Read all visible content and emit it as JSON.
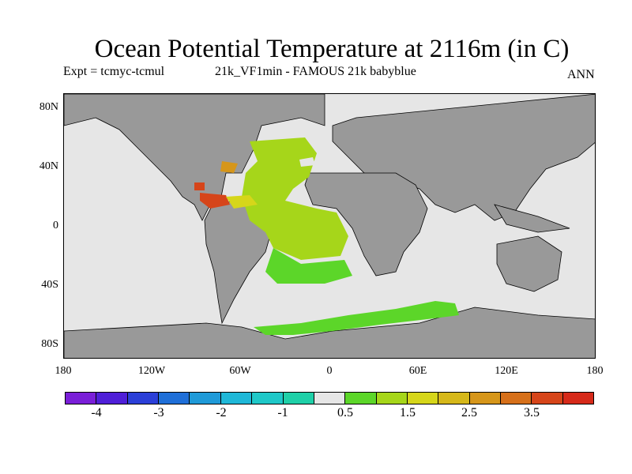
{
  "title": "Ocean Potential Temperature at 2116m (in C)",
  "subtitle_left": "Expt = tcmyc-tcmul",
  "subtitle_center": "21k_VF1min - FAMOUS 21k babyblue",
  "subtitle_right": "ANN",
  "colors": {
    "land": "#999999",
    "ocean_background": "#e6e6e6",
    "coastline": "#000000"
  },
  "map": {
    "lat_ticks": [
      "80N",
      "40N",
      "0",
      "40S",
      "80S"
    ],
    "lon_ticks": [
      "180",
      "120W",
      "60W",
      "0",
      "60E",
      "120E",
      "180"
    ]
  },
  "colorbar": {
    "colors": [
      "#7a1fd8",
      "#4f1fd8",
      "#2b3fd8",
      "#1f6fd8",
      "#1f9ad8",
      "#1fb8d8",
      "#1fc8c8",
      "#1fd0a8",
      "#e6e6e6",
      "#5cd629",
      "#a6d61a",
      "#d6d61a",
      "#d6b81a",
      "#d6961a",
      "#d6701a",
      "#d6451a",
      "#d62a1a"
    ],
    "labels": [
      "-4",
      "-3",
      "-2",
      "-1",
      "0.5",
      "1.5",
      "2.5",
      "3.5"
    ]
  }
}
